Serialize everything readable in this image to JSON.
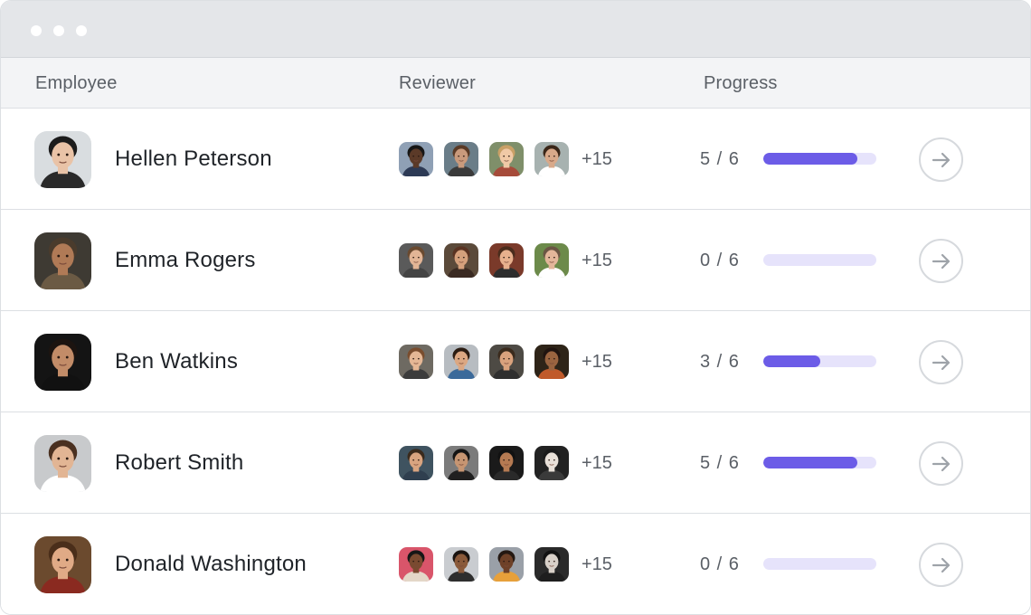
{
  "header": {
    "employee_label": "Employee",
    "reviewer_label": "Reviewer",
    "progress_label": "Progress"
  },
  "colors": {
    "progress_fill": "#6c5ce7",
    "progress_track": "#e6e3fb"
  },
  "rows": [
    {
      "name": "Hellen Peterson",
      "reviewers_more": "+15",
      "progress_text": "5 / 6",
      "progress_fraction": 0.83,
      "avatar": {
        "bg": "#d9dde0",
        "skin": "#e9c3a7",
        "hair": "#1c1c1c",
        "shirt": "#2a2a2a"
      },
      "reviewers": [
        {
          "bg": "#8fa0b5",
          "skin": "#5b3a28",
          "hair": "#161616",
          "shirt": "#2d3a55"
        },
        {
          "bg": "#6a7d88",
          "skin": "#c99a7c",
          "hair": "#5a3a26",
          "shirt": "#3a3a3a"
        },
        {
          "bg": "#7f8f6a",
          "skin": "#f0c9a6",
          "hair": "#c9a066",
          "shirt": "#a64b3a"
        },
        {
          "bg": "#a7b2b0",
          "skin": "#d8a98a",
          "hair": "#3a2618",
          "shirt": "#ffffff"
        }
      ]
    },
    {
      "name": "Emma Rogers",
      "reviewers_more": "+15",
      "progress_text": "0 / 6",
      "progress_fraction": 0,
      "avatar": {
        "bg": "#3e3a33",
        "skin": "#b07a56",
        "hair": "#4a3b2c",
        "shirt": "#6b5a44"
      },
      "reviewers": [
        {
          "bg": "#5a5a5a",
          "skin": "#e2b596",
          "hair": "#6a4a30",
          "shirt": "#444444"
        },
        {
          "bg": "#5b4a3a",
          "skin": "#d5a07c",
          "hair": "#5a3322",
          "shirt": "#3a2a22"
        },
        {
          "bg": "#7a3a2a",
          "skin": "#e7b08d",
          "hair": "#4a2c1c",
          "shirt": "#2d2d2d"
        },
        {
          "bg": "#6c8a4a",
          "skin": "#e3b69a",
          "hair": "#6b5644",
          "shirt": "#ffffff"
        }
      ]
    },
    {
      "name": "Ben Watkins",
      "reviewers_more": "+15",
      "progress_text": "3 / 6",
      "progress_fraction": 0.5,
      "avatar": {
        "bg": "#141414",
        "skin": "#c28c68",
        "hair": "#1c1410",
        "shirt": "#111111"
      },
      "reviewers": [
        {
          "bg": "#6e6a62",
          "skin": "#e5b795",
          "hair": "#7a4d2e",
          "shirt": "#3c3c3c"
        },
        {
          "bg": "#b7bcc1",
          "skin": "#dba782",
          "hair": "#2b1c12",
          "shirt": "#3b6a9a"
        },
        {
          "bg": "#4d4a44",
          "skin": "#d9a27d",
          "hair": "#3a2a1c",
          "shirt": "#2f2f2f"
        },
        {
          "bg": "#2e2418",
          "skin": "#9a6440",
          "hair": "#201410",
          "shirt": "#c05a2a"
        }
      ]
    },
    {
      "name": "Robert Smith",
      "reviewers_more": "+15",
      "progress_text": "5 / 6",
      "progress_fraction": 0.83,
      "avatar": {
        "bg": "#c8cacc",
        "skin": "#e2b594",
        "hair": "#4a3020",
        "shirt": "#ffffff"
      },
      "reviewers": [
        {
          "bg": "#3f5360",
          "skin": "#d8a480",
          "hair": "#3a2a1c",
          "shirt": "#2f3f4f"
        },
        {
          "bg": "#7b7b7b",
          "skin": "#c69572",
          "hair": "#141414",
          "shirt": "#202020"
        },
        {
          "bg": "#1a1a1a",
          "skin": "#b57a52",
          "hair": "#111111",
          "shirt": "#2a2a2a"
        },
        {
          "bg": "#222222",
          "skin": "#e8e0d8",
          "hair": "#1a1a1a",
          "shirt": "#3a3a3a"
        }
      ]
    },
    {
      "name": "Donald Washington",
      "reviewers_more": "+15",
      "progress_text": "0 / 6",
      "progress_fraction": 0,
      "avatar": {
        "bg": "#6b4a2e",
        "skin": "#e0aa86",
        "hair": "#4a2e1a",
        "shirt": "#8a2a20"
      },
      "reviewers": [
        {
          "bg": "#d9556a",
          "skin": "#7a4a30",
          "hair": "#161616",
          "shirt": "#e4d7c8"
        },
        {
          "bg": "#c9ccd0",
          "skin": "#8a5a3a",
          "hair": "#1a1410",
          "shirt": "#2e2e2e"
        },
        {
          "bg": "#9aa0a8",
          "skin": "#6e4128",
          "hair": "#241812",
          "shirt": "#e7a03a"
        },
        {
          "bg": "#2a2a2a",
          "skin": "#d8d0c8",
          "hair": "#121212",
          "shirt": "#1e1e1e"
        }
      ]
    }
  ]
}
